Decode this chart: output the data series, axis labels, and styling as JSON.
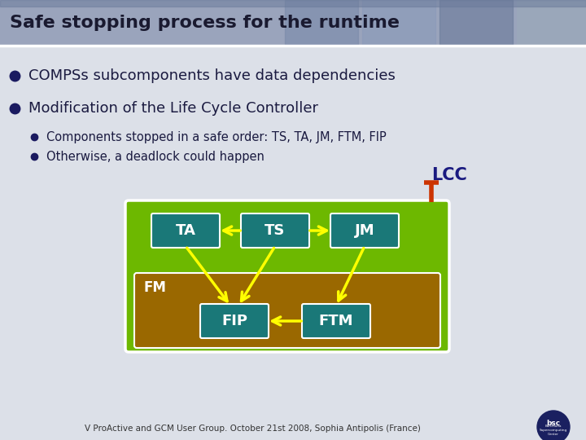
{
  "title": "Safe stopping process for the runtime",
  "title_bg_color": "#9aa4bc",
  "slide_bg": "#dce0e8",
  "bullets": [
    "COMPSs subcomponents have data dependencies",
    "Modification of the Life Cycle Controller"
  ],
  "sub_bullets": [
    "Components stopped in a safe order: TS, TA, JM, FTM, FIP",
    "Otherwise, a deadlock could happen"
  ],
  "lcc_label": "LCC",
  "lcc_color": "#1a1a80",
  "lcc_connector_color": "#cc3300",
  "outer_box_color": "#6db800",
  "outer_box_edge": "#ffffff",
  "inner_box_color": "#9a6800",
  "inner_box_edge": "#ffffff",
  "node_color": "#1a7878",
  "node_edge": "#ffffff",
  "arrow_color": "#ffff00",
  "nodes_top": [
    "TA",
    "TS",
    "JM"
  ],
  "nodes_bottom": [
    "FIP",
    "FTM"
  ],
  "fm_label": "FM",
  "footer_text": "V ProActive and GCM User Group. October 21st 2008, Sophia Antipolis (France)"
}
